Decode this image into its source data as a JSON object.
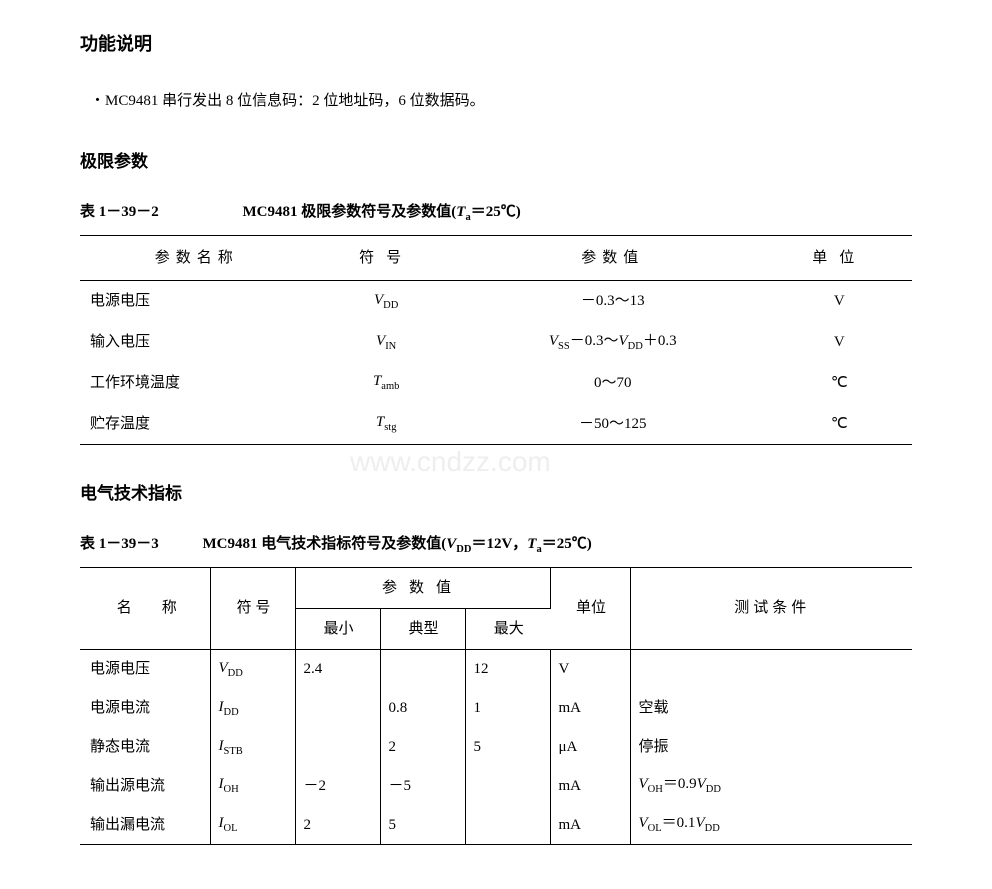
{
  "section1": {
    "title": "功能说明",
    "bullet": "・MC9481 串行发出 8 位信息码：2 位地址码，6 位数据码。"
  },
  "section2": {
    "title": "极限参数",
    "caption_num": "表 1－39－2",
    "caption_txt_prefix": "MC9481 极限参数符号及参数值(",
    "caption_txt_suffix": "＝25℃)",
    "headers": [
      "参数名称",
      "符号",
      "参数值",
      "单位"
    ],
    "rows": [
      {
        "name": "电源电压",
        "symbol_i": "V",
        "symbol_sub": "DD",
        "value_html": "－0.3～13",
        "unit": "V"
      },
      {
        "name": "输入电压",
        "symbol_i": "V",
        "symbol_sub": "IN",
        "value_html": "VSS_RANGE",
        "unit": "V"
      },
      {
        "name": "工作环境温度",
        "symbol_i": "T",
        "symbol_sub": "amb",
        "value_html": "0～70",
        "unit": "℃"
      },
      {
        "name": "贮存温度",
        "symbol_i": "T",
        "symbol_sub": "stg",
        "value_html": "－50～125",
        "unit": "℃"
      }
    ]
  },
  "section3": {
    "title": "电气技术指标",
    "caption_num": "表 1－39－3",
    "caption_txt": "MC9481 电气技术指标符号及参数值(",
    "caption_cond": "＝12V，",
    "caption_end": "＝25℃)",
    "headers": {
      "name": "名　　称",
      "symbol": "符 号",
      "valgroup": "参数值",
      "min": "最小",
      "typ": "典型",
      "max": "最大",
      "unit": "单位",
      "cond": "测试条件"
    },
    "rows": [
      {
        "name": "电源电压",
        "si": "V",
        "ss": "DD",
        "min": "2.4",
        "typ": "",
        "max": "12",
        "unit": "V",
        "cond": ""
      },
      {
        "name": "电源电流",
        "si": "I",
        "ss": "DD",
        "min": "",
        "typ": "0.8",
        "max": "1",
        "unit": "mA",
        "cond": "空载"
      },
      {
        "name": "静态电流",
        "si": "I",
        "ss": "STB",
        "min": "",
        "typ": "2",
        "max": "5",
        "unit": "μA",
        "cond": "停振"
      },
      {
        "name": "输出源电流",
        "si": "I",
        "ss": "OH",
        "min": "－2",
        "typ": "－5",
        "max": "",
        "unit": "mA",
        "cond": "VOH_09VDD"
      },
      {
        "name": "输出漏电流",
        "si": "I",
        "ss": "OL",
        "min": "2",
        "typ": "5",
        "max": "",
        "unit": "mA",
        "cond": "VOL_01VDD"
      }
    ]
  },
  "style": {
    "text_color": "#000000",
    "bg_color": "#ffffff",
    "border_color": "#000000",
    "font_main": "SimSun",
    "title_fontsize": 18,
    "body_fontsize": 15
  }
}
